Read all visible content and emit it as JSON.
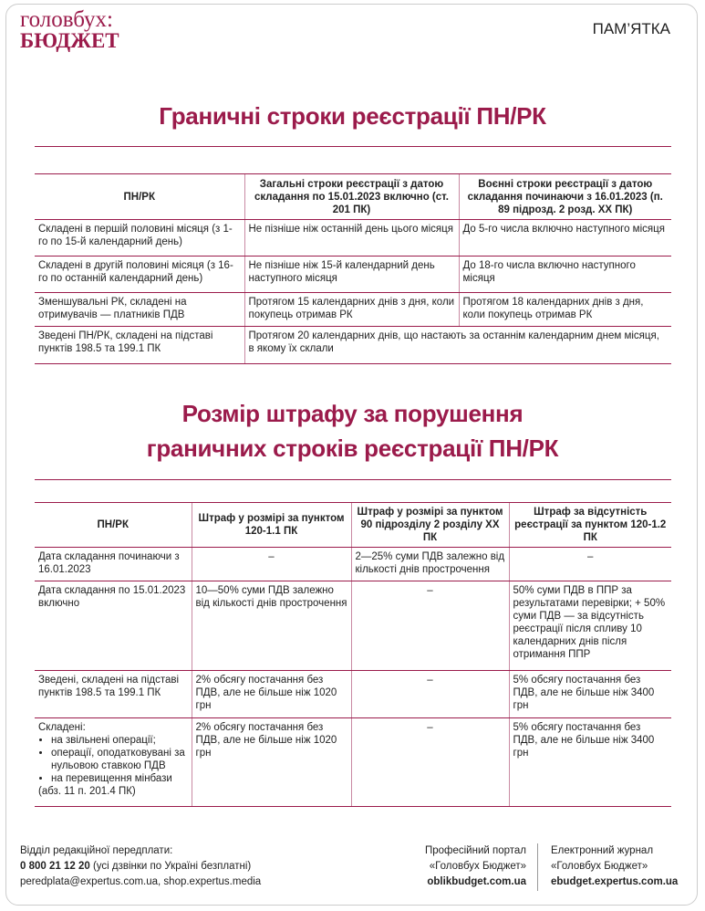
{
  "header": {
    "logo_top": "головбух:",
    "logo_bottom": "БЮДЖЕТ",
    "label": "ПАМ’ЯТКА"
  },
  "section1": {
    "title": "Граничні строки реєстрації ПН/РК",
    "table": {
      "headers": [
        "ПН/РК",
        "Загальні строки реєстрації з датою складання по 15.01.2023 включно (ст. 201 ПК)",
        "Воєнні строки реєстрації з датою складання починаючи з 16.01.2023 (п. 89 підрозд. 2 розд. ХХ ПК)"
      ],
      "rows": [
        [
          "Складені в першій половині місяця (з 1-го по 15-й календарний день)",
          "Не пізніше ніж останній день цього місяця",
          "До 5-го числа включно наступного місяця"
        ],
        [
          "Складені в другій половині місяця (з 16-го по останній календарний день)",
          "Не пізніше ніж 15-й календарний день наступного місяця",
          "До 18-го числа включно наступного місяця"
        ],
        [
          "Зменшувальні РК, складені на отримувачів — платників ПДВ",
          "Протягом 15 календарних днів з дня, коли покупець отримав РК",
          "Протягом 18 календарних днів з дня, коли покупець отримав РК"
        ],
        [
          "Зведені ПН/РК, складені на підставі пунктів 198.5 та 199.1 ПК",
          "Протягом 20 календарних днів, що настають за останнім календарним днем місяця, в якому їх склали"
        ]
      ]
    }
  },
  "section2": {
    "title_lines": [
      "Розмір штрафу за порушення",
      "граничних строків реєстрації ПН/РК"
    ],
    "table": {
      "headers": [
        "ПН/РК",
        "Штраф у розмірі за пунктом 120-1.1 ПК",
        "Штраф у розмірі за пунктом 90 підрозділу 2 розділу ХХ ПК",
        "Штраф за відсутність реєстрації за пунктом 120-1.2 ПК"
      ],
      "rows": [
        [
          "Дата складання починаючи з 16.01.2023",
          "–",
          "2—25% суми ПДВ залежно від кількості днів прострочення",
          "–"
        ],
        [
          "Дата складання по 15.01.2023 включно",
          "10—50% суми ПДВ залежно від кількості днів прострочення",
          "–",
          "50% суми ПДВ в ППР за результатами перевірки; + 50% суми ПДВ — за відсутність реєстрації після спливу 10 календарних днів після отримання ППР"
        ],
        [
          "Зведені, складені на підставі пунктів 198.5 та 199.1 ПК",
          "2% обсягу постачання без ПДВ, але не більше ніж 1020 грн",
          "–",
          "5% обсягу постачання без ПДВ, але не більше ніж 3400 грн"
        ],
        [
          {
            "text": "Складені:",
            "items": [
              "на звільнені операції;",
              "операції, оподатковувані за нульовою ставкою ПДВ",
              "на перевищення мінбази"
            ],
            "note": "(абз. 11 п. 201.4 ПК)"
          },
          "2% обсягу постачання без ПДВ, але не більше ніж 1020 грн",
          "–",
          "5% обсягу постачання без ПДВ, але не більше ніж 3400 грн"
        ]
      ]
    }
  },
  "footer": {
    "left": {
      "line1": "Відділ редакційної передплати:",
      "phone": "0 800 21 12 20",
      "phone_note": "(усі дзвінки по Україні безплатні)",
      "line3": "peredplata@expertus.com.ua, shop.expertus.media"
    },
    "middle": {
      "line1": "Професійний портал",
      "line2": "«Головбух Бюджет»",
      "line3": "oblikbudget.com.ua"
    },
    "right": {
      "line1": "Електронний журнал",
      "line2": "«Головбух Бюджет»",
      "line3": "ebudget.expertus.com.ua"
    }
  }
}
